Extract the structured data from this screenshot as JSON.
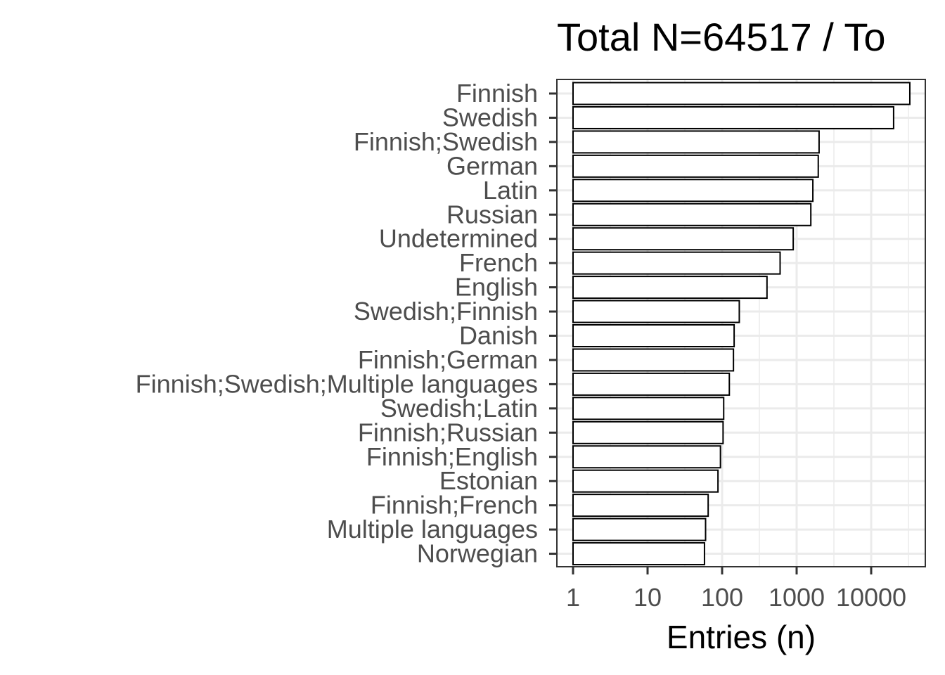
{
  "chart_data": {
    "type": "bar",
    "orientation": "horizontal",
    "title": "Total N=64517 / To",
    "xlabel": "Entries (n)",
    "ylabel": "",
    "x_scale": "log10",
    "xlim": [
      1,
      40000
    ],
    "x_ticks": [
      1,
      10,
      100,
      1000,
      10000
    ],
    "x_tick_labels": [
      "1",
      "10",
      "100",
      "1000",
      "10000"
    ],
    "grid": true,
    "categories": [
      "Finnish",
      "Swedish",
      "Finnish;Swedish",
      "German",
      "Latin",
      "Russian",
      "Undetermined",
      "French",
      "English",
      "Swedish;Finnish",
      "Danish",
      "Finnish;German",
      "Finnish;Swedish;Multiple languages",
      "Swedish;Latin",
      "Finnish;Russian",
      "Finnish;English",
      "Estonian",
      "Finnish;French",
      "Multiple languages",
      "Norwegian"
    ],
    "values": [
      33000,
      20000,
      2000,
      1950,
      1650,
      1550,
      900,
      600,
      400,
      170,
      145,
      142,
      125,
      105,
      103,
      95,
      88,
      65,
      60,
      58
    ],
    "colors": {
      "bar_fill": "#ffffff",
      "bar_stroke": "#000000",
      "grid": "#ebebeb",
      "panel_border": "#333333"
    }
  }
}
